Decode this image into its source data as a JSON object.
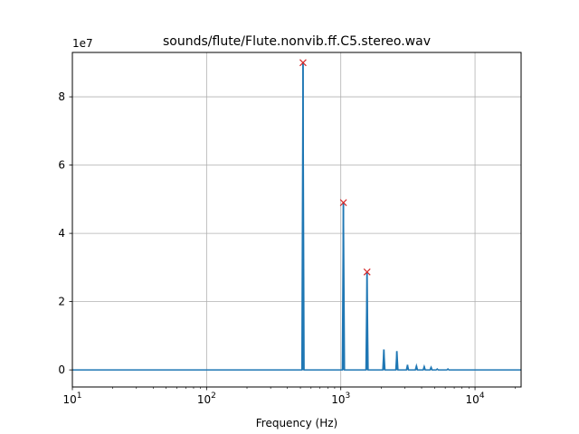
{
  "chart_data": {
    "type": "line",
    "title": "sounds/flute/Flute.nonvib.ff.C5.stereo.wav",
    "xlabel": "Frequency (Hz)",
    "ylabel": "",
    "x_scale": "log",
    "xlim": [
      10,
      22050
    ],
    "ylim": [
      -5000000,
      93000000
    ],
    "y_offset_label": "1e7",
    "grid": true,
    "x_ticks": [
      {
        "value": 10,
        "base": "10",
        "exp": "1"
      },
      {
        "value": 100,
        "base": "10",
        "exp": "2"
      },
      {
        "value": 1000,
        "base": "10",
        "exp": "3"
      },
      {
        "value": 10000,
        "base": "10",
        "exp": "4"
      }
    ],
    "y_ticks": [
      {
        "value": 0,
        "label": "0"
      },
      {
        "value": 20000000,
        "label": "2"
      },
      {
        "value": 40000000,
        "label": "4"
      },
      {
        "value": 60000000,
        "label": "6"
      },
      {
        "value": 80000000,
        "label": "8"
      }
    ],
    "series": [
      {
        "style": "line",
        "color": "#1f77b4",
        "spikes": [
          {
            "x": 523,
            "y": 90000000
          },
          {
            "x": 1046,
            "y": 49000000
          },
          {
            "x": 1569,
            "y": 28500000
          },
          {
            "x": 2093,
            "y": 6000000
          },
          {
            "x": 2616,
            "y": 5500000
          },
          {
            "x": 3139,
            "y": 1500000
          },
          {
            "x": 3662,
            "y": 1200000
          },
          {
            "x": 4185,
            "y": 1000000
          },
          {
            "x": 4708,
            "y": 800000
          },
          {
            "x": 5231,
            "y": 300000
          },
          {
            "x": 6277,
            "y": 300000
          }
        ]
      },
      {
        "style": "markers",
        "marker": "x",
        "color": "#d62728",
        "points": [
          {
            "x": 523,
            "y": 90000000
          },
          {
            "x": 1046,
            "y": 49000000
          },
          {
            "x": 1569,
            "y": 28700000
          }
        ]
      }
    ]
  }
}
